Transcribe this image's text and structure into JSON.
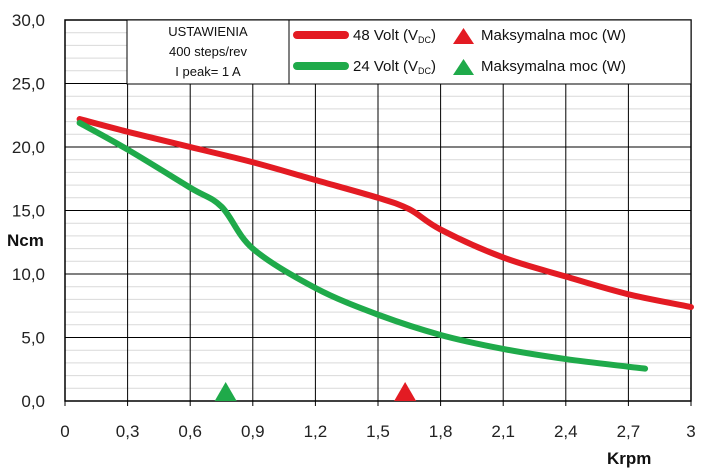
{
  "chart_data": {
    "type": "line",
    "xlabel": "Krpm",
    "ylabel": "Ncm",
    "xlim": [
      0,
      3
    ],
    "ylim": [
      0,
      30
    ],
    "x_ticks": [
      "0",
      "0,3",
      "0,6",
      "0,9",
      "1,2",
      "1,5",
      "1,8",
      "2,1",
      "2,4",
      "2,7",
      "3"
    ],
    "y_ticks": [
      "0,0",
      "5,0",
      "10,0",
      "15,0",
      "20,0",
      "25,0",
      "30,0"
    ],
    "x_tick_values": [
      0,
      0.3,
      0.6,
      0.9,
      1.2,
      1.5,
      1.8,
      2.1,
      2.4,
      2.7,
      3
    ],
    "y_tick_values": [
      0,
      5,
      10,
      15,
      20,
      25,
      30
    ],
    "settings_box": {
      "title": "USTAWIENIA",
      "line1": "400 steps/rev",
      "line2": "I peak= 1 A"
    },
    "series": [
      {
        "name": "48 Volt (V",
        "subscript": "DC",
        "suffix": ")",
        "color": "#e31b23",
        "points": [
          [
            0.07,
            22.2
          ],
          [
            0.3,
            21.2
          ],
          [
            0.6,
            20.0
          ],
          [
            0.9,
            18.8
          ],
          [
            1.2,
            17.4
          ],
          [
            1.5,
            16.0
          ],
          [
            1.65,
            15.1
          ],
          [
            1.8,
            13.5
          ],
          [
            2.1,
            11.3
          ],
          [
            2.4,
            9.8
          ],
          [
            2.7,
            8.4
          ],
          [
            3.0,
            7.4
          ]
        ],
        "max_power_label": "Maksymalna moc (W)",
        "max_power_x": 1.63
      },
      {
        "name": "24 Volt (V",
        "subscript": "DC",
        "suffix": ")",
        "color": "#1faa4a",
        "points": [
          [
            0.07,
            21.9
          ],
          [
            0.3,
            19.8
          ],
          [
            0.6,
            16.8
          ],
          [
            0.75,
            15.3
          ],
          [
            0.9,
            12.0
          ],
          [
            1.2,
            8.9
          ],
          [
            1.5,
            6.8
          ],
          [
            1.8,
            5.2
          ],
          [
            2.1,
            4.1
          ],
          [
            2.4,
            3.3
          ],
          [
            2.7,
            2.7
          ],
          [
            2.78,
            2.55
          ]
        ],
        "max_power_label": "Maksymalna moc (W)",
        "max_power_x": 0.77
      }
    ]
  }
}
